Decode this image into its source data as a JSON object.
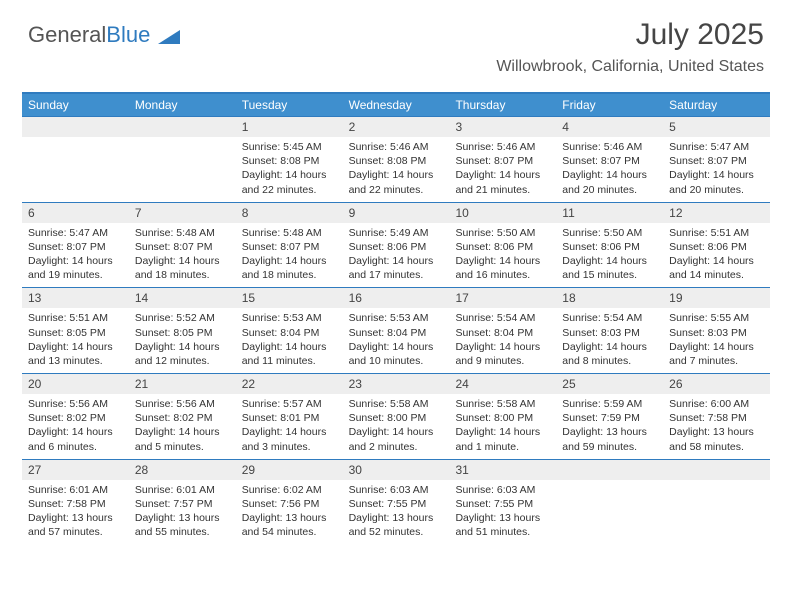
{
  "brand": {
    "part1": "General",
    "part2": "Blue"
  },
  "colors": {
    "accent": "#3f8fce",
    "accent_border": "#2f7bbf",
    "daynum_bg": "#eeeeee",
    "text": "#333333",
    "subtext": "#555555",
    "white": "#ffffff"
  },
  "typography": {
    "title_fontsize": 30,
    "subtitle_fontsize": 16,
    "head_fontsize": 12,
    "daynum_fontsize": 12,
    "body_fontsize": 10.5
  },
  "title": "July 2025",
  "subtitle": "Willowbrook, California, United States",
  "weekdays": [
    "Sunday",
    "Monday",
    "Tuesday",
    "Wednesday",
    "Thursday",
    "Friday",
    "Saturday"
  ],
  "weeks": [
    [
      {},
      {},
      {
        "n": "1",
        "sr": "Sunrise: 5:45 AM",
        "ss": "Sunset: 8:08 PM",
        "dl": "Daylight: 14 hours and 22 minutes."
      },
      {
        "n": "2",
        "sr": "Sunrise: 5:46 AM",
        "ss": "Sunset: 8:08 PM",
        "dl": "Daylight: 14 hours and 22 minutes."
      },
      {
        "n": "3",
        "sr": "Sunrise: 5:46 AM",
        "ss": "Sunset: 8:07 PM",
        "dl": "Daylight: 14 hours and 21 minutes."
      },
      {
        "n": "4",
        "sr": "Sunrise: 5:46 AM",
        "ss": "Sunset: 8:07 PM",
        "dl": "Daylight: 14 hours and 20 minutes."
      },
      {
        "n": "5",
        "sr": "Sunrise: 5:47 AM",
        "ss": "Sunset: 8:07 PM",
        "dl": "Daylight: 14 hours and 20 minutes."
      }
    ],
    [
      {
        "n": "6",
        "sr": "Sunrise: 5:47 AM",
        "ss": "Sunset: 8:07 PM",
        "dl": "Daylight: 14 hours and 19 minutes."
      },
      {
        "n": "7",
        "sr": "Sunrise: 5:48 AM",
        "ss": "Sunset: 8:07 PM",
        "dl": "Daylight: 14 hours and 18 minutes."
      },
      {
        "n": "8",
        "sr": "Sunrise: 5:48 AM",
        "ss": "Sunset: 8:07 PM",
        "dl": "Daylight: 14 hours and 18 minutes."
      },
      {
        "n": "9",
        "sr": "Sunrise: 5:49 AM",
        "ss": "Sunset: 8:06 PM",
        "dl": "Daylight: 14 hours and 17 minutes."
      },
      {
        "n": "10",
        "sr": "Sunrise: 5:50 AM",
        "ss": "Sunset: 8:06 PM",
        "dl": "Daylight: 14 hours and 16 minutes."
      },
      {
        "n": "11",
        "sr": "Sunrise: 5:50 AM",
        "ss": "Sunset: 8:06 PM",
        "dl": "Daylight: 14 hours and 15 minutes."
      },
      {
        "n": "12",
        "sr": "Sunrise: 5:51 AM",
        "ss": "Sunset: 8:06 PM",
        "dl": "Daylight: 14 hours and 14 minutes."
      }
    ],
    [
      {
        "n": "13",
        "sr": "Sunrise: 5:51 AM",
        "ss": "Sunset: 8:05 PM",
        "dl": "Daylight: 14 hours and 13 minutes."
      },
      {
        "n": "14",
        "sr": "Sunrise: 5:52 AM",
        "ss": "Sunset: 8:05 PM",
        "dl": "Daylight: 14 hours and 12 minutes."
      },
      {
        "n": "15",
        "sr": "Sunrise: 5:53 AM",
        "ss": "Sunset: 8:04 PM",
        "dl": "Daylight: 14 hours and 11 minutes."
      },
      {
        "n": "16",
        "sr": "Sunrise: 5:53 AM",
        "ss": "Sunset: 8:04 PM",
        "dl": "Daylight: 14 hours and 10 minutes."
      },
      {
        "n": "17",
        "sr": "Sunrise: 5:54 AM",
        "ss": "Sunset: 8:04 PM",
        "dl": "Daylight: 14 hours and 9 minutes."
      },
      {
        "n": "18",
        "sr": "Sunrise: 5:54 AM",
        "ss": "Sunset: 8:03 PM",
        "dl": "Daylight: 14 hours and 8 minutes."
      },
      {
        "n": "19",
        "sr": "Sunrise: 5:55 AM",
        "ss": "Sunset: 8:03 PM",
        "dl": "Daylight: 14 hours and 7 minutes."
      }
    ],
    [
      {
        "n": "20",
        "sr": "Sunrise: 5:56 AM",
        "ss": "Sunset: 8:02 PM",
        "dl": "Daylight: 14 hours and 6 minutes."
      },
      {
        "n": "21",
        "sr": "Sunrise: 5:56 AM",
        "ss": "Sunset: 8:02 PM",
        "dl": "Daylight: 14 hours and 5 minutes."
      },
      {
        "n": "22",
        "sr": "Sunrise: 5:57 AM",
        "ss": "Sunset: 8:01 PM",
        "dl": "Daylight: 14 hours and 3 minutes."
      },
      {
        "n": "23",
        "sr": "Sunrise: 5:58 AM",
        "ss": "Sunset: 8:00 PM",
        "dl": "Daylight: 14 hours and 2 minutes."
      },
      {
        "n": "24",
        "sr": "Sunrise: 5:58 AM",
        "ss": "Sunset: 8:00 PM",
        "dl": "Daylight: 14 hours and 1 minute."
      },
      {
        "n": "25",
        "sr": "Sunrise: 5:59 AM",
        "ss": "Sunset: 7:59 PM",
        "dl": "Daylight: 13 hours and 59 minutes."
      },
      {
        "n": "26",
        "sr": "Sunrise: 6:00 AM",
        "ss": "Sunset: 7:58 PM",
        "dl": "Daylight: 13 hours and 58 minutes."
      }
    ],
    [
      {
        "n": "27",
        "sr": "Sunrise: 6:01 AM",
        "ss": "Sunset: 7:58 PM",
        "dl": "Daylight: 13 hours and 57 minutes."
      },
      {
        "n": "28",
        "sr": "Sunrise: 6:01 AM",
        "ss": "Sunset: 7:57 PM",
        "dl": "Daylight: 13 hours and 55 minutes."
      },
      {
        "n": "29",
        "sr": "Sunrise: 6:02 AM",
        "ss": "Sunset: 7:56 PM",
        "dl": "Daylight: 13 hours and 54 minutes."
      },
      {
        "n": "30",
        "sr": "Sunrise: 6:03 AM",
        "ss": "Sunset: 7:55 PM",
        "dl": "Daylight: 13 hours and 52 minutes."
      },
      {
        "n": "31",
        "sr": "Sunrise: 6:03 AM",
        "ss": "Sunset: 7:55 PM",
        "dl": "Daylight: 13 hours and 51 minutes."
      },
      {},
      {}
    ]
  ]
}
